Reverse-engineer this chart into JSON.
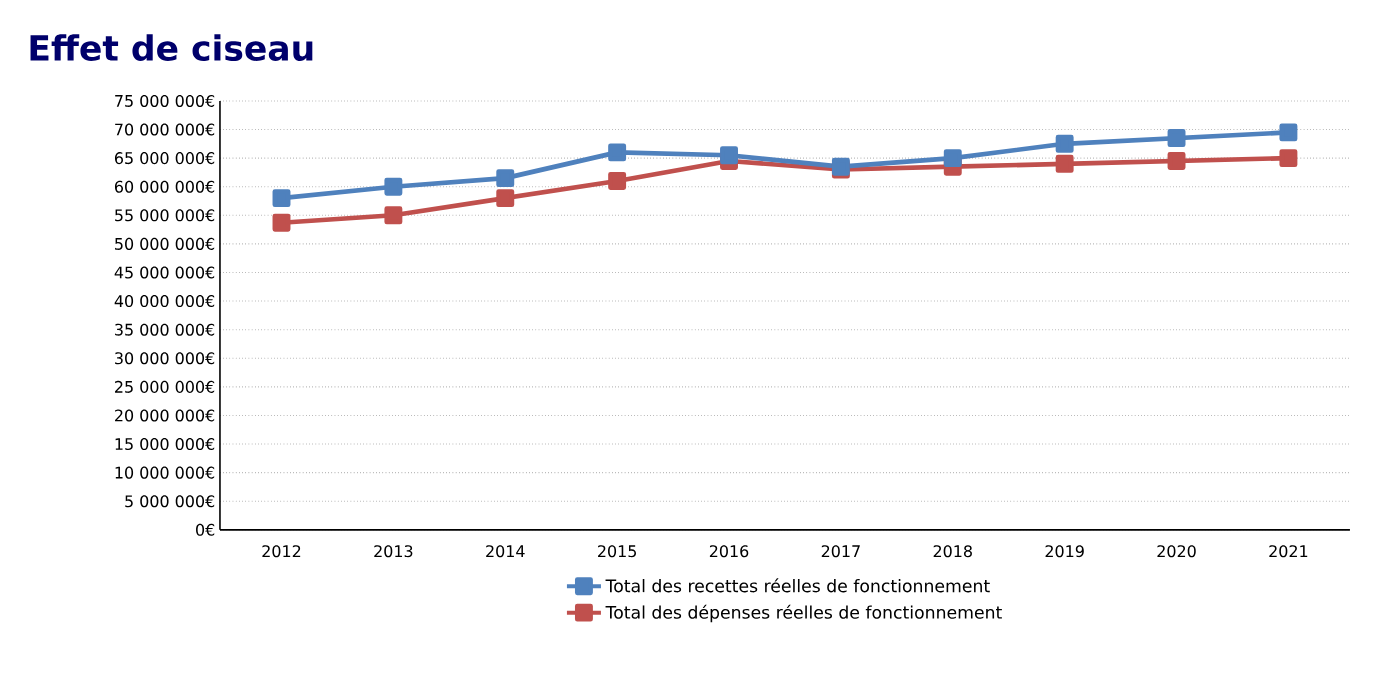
{
  "chart_data": {
    "type": "line",
    "title": "Effet de ciseau",
    "categories": [
      "2012",
      "2013",
      "2014",
      "2015",
      "2016",
      "2017",
      "2018",
      "2019",
      "2020",
      "2021"
    ],
    "series": [
      {
        "name": "Total des recettes réelles de fonctionnement",
        "color": "#4f81bd",
        "values": [
          58000000,
          60000000,
          61500000,
          66000000,
          65500000,
          63500000,
          65000000,
          67500000,
          68500000,
          69500000
        ]
      },
      {
        "name": "Total des dépenses réelles de fonctionnement",
        "color": "#c0504d",
        "values": [
          53700000,
          55000000,
          58000000,
          61000000,
          64500000,
          63000000,
          63500000,
          64000000,
          64500000,
          65000000
        ]
      }
    ],
    "ylim": [
      0,
      75000000
    ],
    "yticks": [
      {
        "value": 0,
        "label": "0€"
      },
      {
        "value": 5000000,
        "label": "5 000 000€"
      },
      {
        "value": 10000000,
        "label": "10 000 000€"
      },
      {
        "value": 15000000,
        "label": "15 000 000€"
      },
      {
        "value": 20000000,
        "label": "20 000 000€"
      },
      {
        "value": 25000000,
        "label": "25 000 000€"
      },
      {
        "value": 30000000,
        "label": "30 000 000€"
      },
      {
        "value": 35000000,
        "label": "35 000 000€"
      },
      {
        "value": 40000000,
        "label": "40 000 000€"
      },
      {
        "value": 45000000,
        "label": "45 000 000€"
      },
      {
        "value": 50000000,
        "label": "50 000 000€"
      },
      {
        "value": 55000000,
        "label": "55 000 000€"
      },
      {
        "value": 60000000,
        "label": "60 000 000€"
      },
      {
        "value": 65000000,
        "label": "65 000 000€"
      },
      {
        "value": 70000000,
        "label": "70 000 000€"
      },
      {
        "value": 75000000,
        "label": "75 000 000€"
      }
    ],
    "grid": "y",
    "legend": "bottom",
    "marker": "square",
    "line_style": "solid"
  }
}
